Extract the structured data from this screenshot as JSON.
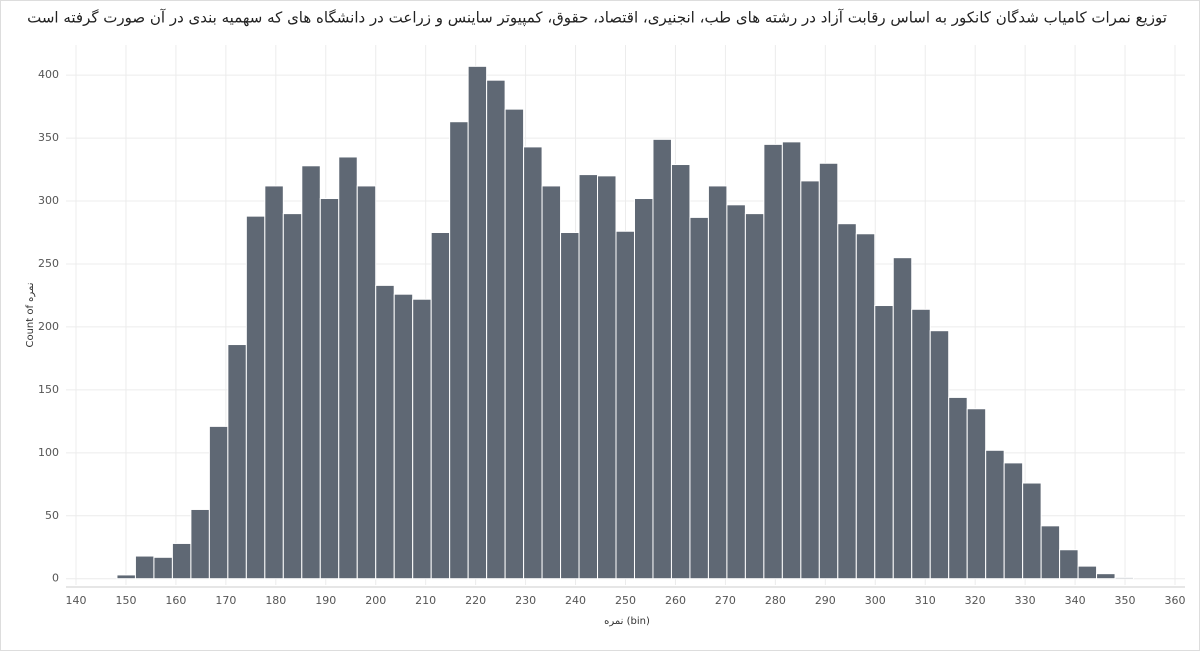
{
  "chart_data": {
    "type": "histogram",
    "title": "توزیع نمرات کامیاب شدگان کانکور به اساس رقابت آزاد در رشته های طب، انجنیری، اقتصاد، حقوق، کمپیوتر ساینس و زراعت در دانشگاه های که سهمیه بندی در آن صورت گرفته است",
    "x_label": "نمره (bin)",
    "y_label": "Count of نمره",
    "color": "#5f6874",
    "bins": [
      148.2,
      151.9,
      155.6,
      159.3,
      163,
      166.7,
      170.4,
      174.1,
      177.8,
      181.5,
      185.2,
      188.9,
      192.6,
      196.3,
      200,
      203.7,
      207.4,
      211.1,
      214.8,
      218.5,
      222.2,
      225.9,
      229.6,
      233.3,
      237,
      240.7,
      244.4,
      248.1,
      251.8,
      255.5,
      259.2,
      262.9,
      266.6,
      270.3,
      274,
      277.7,
      281.4,
      285.1,
      288.8,
      292.5,
      296.2,
      299.9,
      303.6,
      307.3,
      311,
      314.7,
      318.4,
      322.1,
      325.8,
      329.5,
      333.2,
      336.9,
      340.6,
      344.3,
      348,
      351.7
    ],
    "values": [
      3,
      18,
      17,
      28,
      55,
      121,
      186,
      288,
      312,
      290,
      328,
      302,
      335,
      312,
      233,
      226,
      222,
      275,
      363,
      407,
      396,
      373,
      343,
      312,
      275,
      321,
      320,
      276,
      302,
      349,
      329,
      287,
      312,
      297,
      290,
      345,
      347,
      316,
      330,
      282,
      274,
      217,
      255,
      214,
      197,
      144,
      135,
      102,
      92,
      76,
      42,
      23,
      10,
      4,
      1
    ],
    "xlim": [
      140,
      360
    ],
    "xticks": [
      140,
      150,
      160,
      170,
      180,
      190,
      200,
      210,
      220,
      230,
      240,
      250,
      260,
      270,
      280,
      290,
      300,
      310,
      320,
      330,
      340,
      350,
      360
    ],
    "ylim": [
      -5,
      416
    ],
    "yticks": [
      0,
      50,
      100,
      150,
      200,
      250,
      300,
      350,
      400
    ],
    "grid": true
  }
}
